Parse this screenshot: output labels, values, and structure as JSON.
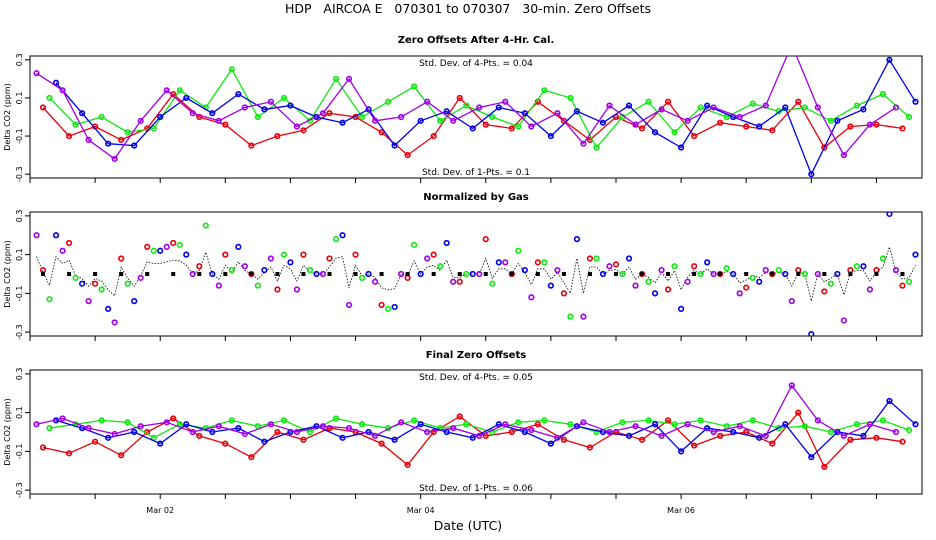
{
  "title": "HDP   AIRCOA E   070301 to 070307   30-min. Zero Offsets",
  "xlabel": "Date (UTC)",
  "colors": {
    "red": "#e8000b",
    "green": "#10e810",
    "blue": "#0000e8",
    "purple": "#a000e8",
    "black": "#000000"
  },
  "chart_data": [
    {
      "type": "line",
      "title": "Zero Offsets After 4-Hr. Cal.",
      "ylabel": "Delta CO2 (ppm)",
      "ylim": [
        -0.32,
        0.32
      ],
      "yticks": [
        "-0.3",
        "-0.1",
        "0.1",
        "0.3"
      ],
      "yticks_values": [
        -0.3,
        -0.1,
        0.1,
        0.3
      ],
      "xlim": [
        1.0,
        7.85
      ],
      "xticks": [
        "Mar 02",
        "Mar 04",
        "Mar 06"
      ],
      "xticks_values": [
        2,
        4,
        6
      ],
      "annotations": [
        "Std. Dev. of 4-Pts. = 0.04",
        "Std. Dev. of 1-Pts. = 0.1"
      ],
      "series": [
        {
          "name": "red",
          "color": "red",
          "x": [
            1.1,
            1.3,
            1.5,
            1.7,
            1.9,
            2.1,
            2.3,
            2.5,
            2.7,
            2.9,
            3.1,
            3.3,
            3.5,
            3.7,
            3.9,
            4.1,
            4.3,
            4.5,
            4.7,
            4.9,
            5.1,
            5.3,
            5.5,
            5.7,
            5.9,
            6.1,
            6.3,
            6.5,
            6.7,
            6.9,
            7.1,
            7.3,
            7.5,
            7.7
          ],
          "y": [
            0.05,
            -0.1,
            -0.05,
            -0.12,
            -0.06,
            0.12,
            0.0,
            -0.04,
            -0.15,
            -0.1,
            -0.07,
            0.02,
            0.0,
            -0.08,
            -0.2,
            -0.1,
            0.1,
            -0.04,
            -0.06,
            0.08,
            -0.02,
            -0.12,
            0.0,
            -0.06,
            0.08,
            -0.1,
            -0.03,
            -0.05,
            -0.07,
            0.08,
            -0.16,
            -0.05,
            -0.04,
            -0.06
          ]
        },
        {
          "name": "green",
          "color": "green",
          "x": [
            1.15,
            1.35,
            1.55,
            1.75,
            1.95,
            2.15,
            2.35,
            2.55,
            2.75,
            2.95,
            3.15,
            3.35,
            3.55,
            3.75,
            3.95,
            4.15,
            4.35,
            4.55,
            4.75,
            4.95,
            5.15,
            5.35,
            5.55,
            5.75,
            5.95,
            6.15,
            6.35,
            6.55,
            6.75,
            6.95,
            7.15,
            7.35,
            7.55,
            7.75
          ],
          "y": [
            0.1,
            -0.04,
            0.0,
            -0.08,
            -0.06,
            0.14,
            0.05,
            0.25,
            0.0,
            0.1,
            -0.02,
            0.2,
            0.0,
            0.08,
            0.16,
            -0.02,
            0.06,
            0.0,
            -0.05,
            0.14,
            0.1,
            -0.16,
            0.0,
            0.08,
            -0.08,
            0.05,
            0.0,
            0.07,
            0.03,
            0.05,
            -0.02,
            0.06,
            0.12,
            0.0
          ]
        },
        {
          "name": "blue",
          "color": "blue",
          "x": [
            1.2,
            1.4,
            1.6,
            1.8,
            2.0,
            2.2,
            2.4,
            2.6,
            2.8,
            3.0,
            3.2,
            3.4,
            3.6,
            3.8,
            4.0,
            4.2,
            4.4,
            4.6,
            4.8,
            5.0,
            5.2,
            5.4,
            5.6,
            5.8,
            6.0,
            6.2,
            6.4,
            6.6,
            6.8,
            7.0,
            7.2,
            7.4,
            7.6,
            7.8
          ],
          "y": [
            0.18,
            0.02,
            -0.14,
            -0.15,
            0.0,
            0.1,
            0.02,
            0.12,
            0.04,
            0.06,
            0.0,
            -0.03,
            0.04,
            -0.15,
            -0.02,
            0.03,
            -0.06,
            0.05,
            0.02,
            -0.1,
            0.03,
            -0.03,
            0.06,
            -0.08,
            -0.16,
            0.06,
            0.0,
            -0.05,
            0.05,
            -0.3,
            -0.02,
            0.04,
            0.3,
            0.08
          ]
        },
        {
          "name": "purple",
          "color": "purple",
          "x": [
            1.05,
            1.25,
            1.45,
            1.65,
            1.85,
            2.05,
            2.25,
            2.45,
            2.65,
            2.85,
            3.05,
            3.25,
            3.45,
            3.65,
            3.85,
            4.05,
            4.25,
            4.45,
            4.65,
            4.85,
            5.05,
            5.25,
            5.45,
            5.65,
            5.85,
            6.05,
            6.25,
            6.45,
            6.65,
            6.85,
            7.05,
            7.25,
            7.45,
            7.65
          ],
          "y": [
            0.23,
            0.14,
            -0.12,
            -0.22,
            -0.02,
            0.14,
            0.02,
            -0.02,
            0.05,
            0.08,
            -0.05,
            0.02,
            0.2,
            -0.02,
            0.0,
            0.08,
            -0.02,
            0.05,
            0.08,
            -0.05,
            0.02,
            -0.14,
            0.06,
            -0.04,
            0.04,
            -0.02,
            0.05,
            0.0,
            0.06,
            0.38,
            0.05,
            -0.2,
            -0.04,
            0.05
          ]
        }
      ]
    },
    {
      "type": "scatter",
      "title": "Normalized by Gas",
      "ylabel": "Delta CO2 (ppm)",
      "ylim": [
        -0.32,
        0.32
      ],
      "yticks": [
        "-0.3",
        "-0.1",
        "0.1",
        "0.3"
      ],
      "yticks_values": [
        -0.3,
        -0.1,
        0.1,
        0.3
      ],
      "xlim": [
        1.0,
        7.85
      ],
      "xticks": [
        "Mar 02",
        "Mar 04",
        "Mar 06"
      ],
      "xticks_values": [
        2,
        4,
        6
      ],
      "series": [
        {
          "name": "red",
          "color": "red",
          "x": [
            1.1,
            1.3,
            1.5,
            1.7,
            1.9,
            2.1,
            2.3,
            2.5,
            2.7,
            2.9,
            3.1,
            3.3,
            3.5,
            3.7,
            3.9,
            4.1,
            4.3,
            4.5,
            4.7,
            4.9,
            5.1,
            5.3,
            5.5,
            5.7,
            5.9,
            6.1,
            6.3,
            6.5,
            6.7,
            6.9,
            7.1,
            7.3,
            7.5,
            7.7
          ],
          "y": [
            0.02,
            0.16,
            -0.05,
            0.08,
            0.14,
            0.16,
            0.04,
            0.1,
            0.0,
            -0.08,
            0.1,
            0.08,
            0.1,
            -0.16,
            -0.02,
            0.1,
            -0.04,
            0.18,
            0.0,
            0.06,
            -0.1,
            0.08,
            0.05,
            0.0,
            -0.08,
            0.04,
            0.0,
            -0.07,
            0.0,
            0.02,
            -0.09,
            0.02,
            0.02,
            -0.06
          ]
        },
        {
          "name": "green",
          "color": "green",
          "x": [
            1.15,
            1.35,
            1.55,
            1.75,
            1.95,
            2.15,
            2.35,
            2.55,
            2.75,
            2.95,
            3.15,
            3.35,
            3.55,
            3.75,
            3.95,
            4.15,
            4.35,
            4.55,
            4.75,
            4.95,
            5.15,
            5.35,
            5.55,
            5.75,
            5.95,
            6.15,
            6.35,
            6.55,
            6.75,
            6.95,
            7.15,
            7.35,
            7.55,
            7.75
          ],
          "y": [
            -0.13,
            -0.02,
            -0.08,
            -0.05,
            0.12,
            0.15,
            0.25,
            0.02,
            -0.06,
            0.1,
            0.02,
            0.18,
            -0.02,
            -0.18,
            0.15,
            0.04,
            0.0,
            -0.05,
            0.12,
            0.06,
            -0.22,
            0.08,
            0.0,
            -0.04,
            0.04,
            0.0,
            0.03,
            -0.02,
            0.02,
            0.0,
            -0.05,
            0.04,
            0.08,
            -0.04
          ]
        },
        {
          "name": "blue",
          "color": "blue",
          "x": [
            1.2,
            1.4,
            1.6,
            1.8,
            2.0,
            2.2,
            2.4,
            2.6,
            2.8,
            3.0,
            3.2,
            3.4,
            3.6,
            3.8,
            4.0,
            4.2,
            4.4,
            4.6,
            4.8,
            5.0,
            5.2,
            5.4,
            5.6,
            5.8,
            6.0,
            6.2,
            6.4,
            6.6,
            6.8,
            7.0,
            7.2,
            7.4,
            7.6,
            7.8
          ],
          "y": [
            0.2,
            -0.05,
            -0.18,
            -0.14,
            0.12,
            0.1,
            0.0,
            0.14,
            0.02,
            0.06,
            0.0,
            0.2,
            0.0,
            -0.17,
            0.0,
            0.16,
            0.0,
            0.06,
            0.02,
            -0.06,
            0.18,
            0.0,
            0.08,
            -0.1,
            -0.18,
            0.06,
            0.0,
            -0.04,
            0.0,
            -0.31,
            0.0,
            0.04,
            0.31,
            0.1
          ]
        },
        {
          "name": "purple",
          "color": "purple",
          "x": [
            1.05,
            1.25,
            1.45,
            1.65,
            1.85,
            2.05,
            2.25,
            2.45,
            2.65,
            2.85,
            3.05,
            3.25,
            3.45,
            3.65,
            3.85,
            4.05,
            4.25,
            4.45,
            4.65,
            4.85,
            5.05,
            5.25,
            5.45,
            5.65,
            5.85,
            6.05,
            6.25,
            6.45,
            6.65,
            6.85,
            7.05,
            7.25,
            7.45,
            7.65
          ],
          "y": [
            0.2,
            0.12,
            -0.14,
            -0.25,
            -0.02,
            0.14,
            0.0,
            -0.06,
            0.04,
            0.08,
            -0.08,
            0.0,
            -0.16,
            -0.04,
            0.0,
            0.08,
            -0.04,
            0.0,
            0.06,
            -0.12,
            0.02,
            -0.22,
            0.04,
            -0.06,
            0.02,
            -0.04,
            0.0,
            -0.1,
            0.02,
            -0.14,
            0.0,
            -0.24,
            -0.08,
            0.02
          ]
        },
        {
          "name": "black",
          "color": "black",
          "x": [
            1.1,
            1.3,
            1.5,
            1.7,
            1.9,
            2.1,
            2.3,
            2.5,
            2.7,
            2.9,
            3.1,
            3.3,
            3.5,
            3.7,
            3.9,
            4.1,
            4.3,
            4.5,
            4.7,
            4.9,
            5.1,
            5.3,
            5.5,
            5.7,
            5.9,
            6.1,
            6.3,
            6.5,
            6.7,
            6.9,
            7.1,
            7.3,
            7.5,
            7.7
          ],
          "y": [
            0.0,
            0.0,
            0.0,
            0.0,
            0.0,
            0.0,
            0.0,
            0.0,
            0.0,
            0.0,
            0.0,
            0.0,
            0.0,
            0.0,
            0.0,
            0.0,
            0.0,
            0.0,
            0.0,
            0.0,
            0.0,
            0.0,
            0.0,
            0.0,
            0.0,
            0.0,
            0.0,
            0.0,
            0.0,
            0.0,
            0.0,
            0.0,
            0.0,
            0.0
          ]
        }
      ]
    },
    {
      "type": "line",
      "title": "Final Zero Offsets",
      "ylabel": "Delta CO2 (ppm)",
      "ylim": [
        -0.32,
        0.32
      ],
      "yticks": [
        "-0.3",
        "-0.1",
        "0.1",
        "0.3"
      ],
      "yticks_values": [
        -0.3,
        -0.1,
        0.1,
        0.3
      ],
      "xlim": [
        1.0,
        7.85
      ],
      "xticks": [
        "Mar 02",
        "Mar 04",
        "Mar 06"
      ],
      "xticks_values": [
        2,
        4,
        6
      ],
      "annotations": [
        "Std. Dev. of 4-Pts. = 0.05",
        "Std. Dev. of 1-Pts. = 0.06"
      ],
      "series": [
        {
          "name": "red",
          "color": "red",
          "x": [
            1.1,
            1.3,
            1.5,
            1.7,
            1.9,
            2.1,
            2.3,
            2.5,
            2.7,
            2.9,
            3.1,
            3.3,
            3.5,
            3.7,
            3.9,
            4.1,
            4.3,
            4.5,
            4.7,
            4.9,
            5.1,
            5.3,
            5.5,
            5.7,
            5.9,
            6.1,
            6.3,
            6.5,
            6.7,
            6.9,
            7.1,
            7.3,
            7.5,
            7.7
          ],
          "y": [
            -0.08,
            -0.11,
            -0.05,
            -0.12,
            0.0,
            0.07,
            -0.02,
            -0.06,
            -0.13,
            0.0,
            -0.04,
            0.02,
            0.0,
            -0.06,
            -0.17,
            0.0,
            0.08,
            -0.02,
            0.0,
            0.04,
            -0.04,
            -0.08,
            0.0,
            -0.04,
            0.06,
            -0.07,
            -0.02,
            0.0,
            -0.06,
            0.1,
            -0.18,
            -0.04,
            -0.03,
            -0.05
          ]
        },
        {
          "name": "green",
          "color": "green",
          "x": [
            1.15,
            1.35,
            1.55,
            1.75,
            1.95,
            2.15,
            2.35,
            2.55,
            2.75,
            2.95,
            3.15,
            3.35,
            3.55,
            3.75,
            3.95,
            4.15,
            4.35,
            4.55,
            4.75,
            4.95,
            5.15,
            5.35,
            5.55,
            5.75,
            5.95,
            6.15,
            6.35,
            6.55,
            6.75,
            6.95,
            7.15,
            7.35,
            7.55,
            7.75
          ],
          "y": [
            0.02,
            0.04,
            0.06,
            0.05,
            -0.03,
            0.04,
            0.02,
            0.06,
            0.03,
            0.06,
            0.0,
            0.07,
            0.04,
            0.02,
            0.06,
            0.02,
            0.04,
            0.0,
            0.05,
            0.06,
            0.04,
            0.0,
            0.05,
            0.06,
            0.04,
            0.06,
            0.03,
            0.06,
            0.02,
            0.03,
            0.0,
            0.04,
            0.06,
            0.01
          ]
        },
        {
          "name": "blue",
          "color": "blue",
          "x": [
            1.2,
            1.4,
            1.6,
            1.8,
            2.0,
            2.2,
            2.4,
            2.6,
            2.8,
            3.0,
            3.2,
            3.4,
            3.6,
            3.8,
            4.0,
            4.2,
            4.4,
            4.6,
            4.8,
            5.0,
            5.2,
            5.4,
            5.6,
            5.8,
            6.0,
            6.2,
            6.4,
            6.6,
            6.8,
            7.0,
            7.2,
            7.4,
            7.6,
            7.8
          ],
          "y": [
            0.06,
            0.02,
            -0.03,
            0.0,
            -0.06,
            0.04,
            0.0,
            0.02,
            -0.05,
            0.0,
            0.03,
            -0.03,
            0.0,
            -0.04,
            0.04,
            0.0,
            -0.03,
            0.04,
            0.0,
            -0.06,
            0.03,
            0.0,
            -0.02,
            0.04,
            -0.1,
            0.02,
            0.0,
            -0.03,
            0.04,
            -0.13,
            0.0,
            -0.02,
            0.16,
            0.04
          ]
        },
        {
          "name": "purple",
          "color": "purple",
          "x": [
            1.05,
            1.25,
            1.45,
            1.65,
            1.85,
            2.05,
            2.25,
            2.45,
            2.65,
            2.85,
            3.05,
            3.25,
            3.45,
            3.65,
            3.85,
            4.05,
            4.25,
            4.45,
            4.65,
            4.85,
            5.05,
            5.25,
            5.45,
            5.65,
            5.85,
            6.05,
            6.25,
            6.45,
            6.65,
            6.85,
            7.05,
            7.25,
            7.45,
            7.65
          ],
          "y": [
            0.04,
            0.07,
            0.02,
            -0.01,
            0.03,
            0.05,
            0.0,
            0.03,
            -0.01,
            0.04,
            0.0,
            0.03,
            0.02,
            -0.02,
            0.05,
            0.0,
            0.02,
            -0.02,
            0.04,
            0.01,
            -0.03,
            0.05,
            0.0,
            0.03,
            -0.02,
            0.04,
            0.0,
            0.03,
            -0.02,
            0.24,
            0.06,
            -0.02,
            0.04,
            0.0
          ]
        }
      ]
    }
  ]
}
